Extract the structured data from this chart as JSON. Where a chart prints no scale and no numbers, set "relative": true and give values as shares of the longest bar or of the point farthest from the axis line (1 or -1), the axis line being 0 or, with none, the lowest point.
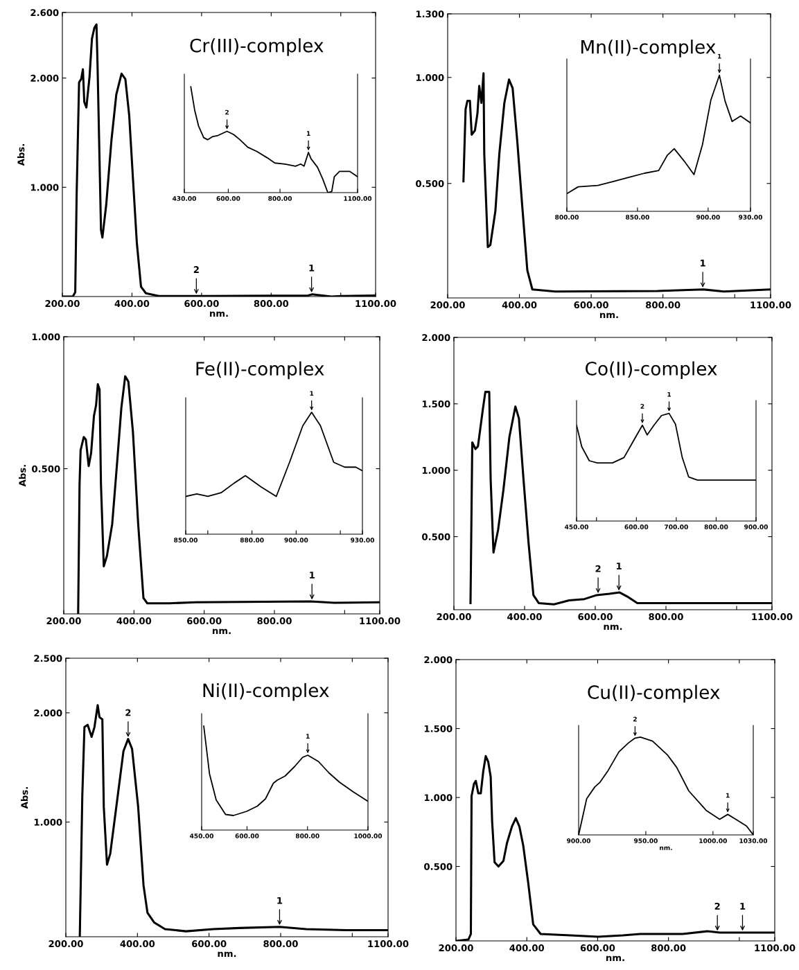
{
  "chart_data": [
    {
      "type": "line",
      "title": "Cr(III)-complex",
      "xlabel": "nm.",
      "ylabel": "Abs.",
      "color": "#000000",
      "x": [
        200,
        230,
        237,
        241,
        248,
        254,
        259,
        263,
        269,
        278,
        285,
        292,
        298,
        301,
        311,
        315,
        326,
        341,
        355,
        370,
        381,
        392,
        403,
        414,
        426,
        440,
        477,
        610,
        906,
        917,
        973,
        1003,
        1100
      ],
      "values": [
        0,
        0,
        0.04,
        0.93,
        1.96,
        1.99,
        2.08,
        1.78,
        1.73,
        2.01,
        2.36,
        2.46,
        2.49,
        2.13,
        0.61,
        0.54,
        0.84,
        1.43,
        1.85,
        2.04,
        1.99,
        1.66,
        1.07,
        0.49,
        0.09,
        0.03,
        0.005,
        0.005,
        0.01,
        0.02,
        0,
        0.005,
        0.01
      ],
      "xlim": [
        200,
        1100
      ],
      "ylim": [
        0,
        2.6
      ],
      "xticks": [
        {
          "value": 200,
          "label": "200.00"
        },
        {
          "value": 400,
          "label": "400.00"
        },
        {
          "value": 600,
          "label": "600.00"
        },
        {
          "value": 800,
          "label": "800.00"
        },
        {
          "value": 1000,
          "label": null
        },
        {
          "value": 1100,
          "label": "1100.00"
        }
      ],
      "yticks": [
        {
          "value": 1.0,
          "label": "1.000"
        },
        {
          "value": 2.0,
          "label": "2.000"
        },
        {
          "value": 2.6,
          "label": "2.600"
        }
      ],
      "annotations": [
        {
          "text": "2",
          "x": 585,
          "y": 0.005
        },
        {
          "text": "1",
          "x": 916,
          "y": 0.02
        }
      ]
    },
    {
      "type": "line",
      "relative": true,
      "color": "#000000",
      "x": [
        455,
        470,
        485,
        505,
        520,
        540,
        560,
        595,
        620,
        645,
        675,
        710,
        750,
        780,
        820,
        860,
        880,
        893,
        910,
        920,
        945,
        965,
        985,
        1000,
        1010,
        1030,
        1070,
        1100
      ],
      "values": [
        1.0,
        0.78,
        0.63,
        0.52,
        0.5,
        0.53,
        0.54,
        0.58,
        0.55,
        0.5,
        0.43,
        0.39,
        0.33,
        0.28,
        0.27,
        0.25,
        0.27,
        0.25,
        0.38,
        0.32,
        0.24,
        0.13,
        0.0,
        0.01,
        0.15,
        0.2,
        0.2,
        0.15
      ],
      "xlim": [
        430,
        1100
      ],
      "xticks": [
        {
          "value": 430,
          "label": "430.00"
        },
        {
          "value": 600,
          "label": "600.00"
        },
        {
          "value": 800,
          "label": "800.00"
        },
        {
          "value": 1100,
          "label": "1100.00"
        }
      ],
      "annotations": [
        {
          "text": "2",
          "x": 595,
          "y": 0.58
        },
        {
          "text": "1",
          "x": 910,
          "y": 0.38
        }
      ]
    },
    {
      "type": "line",
      "title": "Mn(II)-complex",
      "xlabel": "nm.",
      "color": "#000000",
      "x": [
        244,
        250,
        255,
        262,
        267,
        276,
        283,
        288,
        294,
        300,
        302,
        312,
        319,
        333,
        344,
        358,
        371,
        381,
        394,
        408,
        422,
        436,
        500,
        785,
        913,
        970,
        1100
      ],
      "values": [
        0.51,
        0.85,
        0.89,
        0.89,
        0.73,
        0.75,
        0.83,
        0.96,
        0.88,
        1.02,
        0.64,
        0.2,
        0.21,
        0.37,
        0.64,
        0.88,
        0.99,
        0.95,
        0.7,
        0.39,
        0.09,
        0,
        -0.01,
        -0.007,
        0,
        -0.01,
        0
      ],
      "xlim": [
        200,
        1100
      ],
      "ylim": [
        -0.04,
        1.3
      ],
      "xticks": [
        {
          "value": 200,
          "label": "200.00"
        },
        {
          "value": 400,
          "label": "400.00"
        },
        {
          "value": 600,
          "label": "600.00"
        },
        {
          "value": 800,
          "label": "800.00"
        },
        {
          "value": 1000,
          "label": null
        },
        {
          "value": 1100,
          "label": "1100.00"
        }
      ],
      "yticks": [
        {
          "value": 0.5,
          "label": "0.500"
        },
        {
          "value": 1.0,
          "label": "1.000"
        },
        {
          "value": 1.3,
          "label": "1.300"
        }
      ],
      "annotations": [
        {
          "text": "1",
          "x": 911,
          "y": 0
        }
      ]
    },
    {
      "type": "line",
      "relative": true,
      "color": "#000000",
      "x": [
        800,
        808,
        822,
        833,
        844,
        855,
        865,
        871,
        876,
        883,
        890,
        896,
        902,
        908,
        912,
        917,
        923,
        930
      ],
      "values": [
        0.13,
        0.18,
        0.19,
        0.22,
        0.25,
        0.28,
        0.3,
        0.41,
        0.46,
        0.37,
        0.27,
        0.49,
        0.82,
        1.0,
        0.81,
        0.66,
        0.7,
        0.65
      ],
      "xlim": [
        800,
        930
      ],
      "xticks": [
        {
          "value": 800,
          "label": "800.00"
        },
        {
          "value": 850,
          "label": "850.00"
        },
        {
          "value": 900,
          "label": "900.00"
        },
        {
          "value": 930,
          "label": "930.00"
        }
      ],
      "annotations": [
        {
          "text": "1",
          "x": 908,
          "y": 1.0
        }
      ]
    },
    {
      "type": "line",
      "title": "Fe(II)-complex",
      "xlabel": "nm.",
      "ylabel": "Abs.",
      "color": "#000000",
      "x": [
        241,
        245,
        248,
        257,
        263,
        271,
        278,
        286,
        292,
        297,
        302,
        306,
        314,
        323,
        338,
        353,
        364,
        375,
        384,
        397,
        412,
        427,
        438,
        501,
        576,
        903,
        970,
        1100
      ],
      "values": [
        -0.05,
        0.44,
        0.57,
        0.62,
        0.61,
        0.51,
        0.56,
        0.7,
        0.74,
        0.82,
        0.8,
        0.44,
        0.13,
        0.17,
        0.29,
        0.54,
        0.73,
        0.85,
        0.83,
        0.64,
        0.29,
        0.01,
        -0.01,
        -0.01,
        -0.006,
        -0.003,
        -0.008,
        -0.006
      ],
      "xlim": [
        200,
        1100
      ],
      "ylim": [
        -0.05,
        1.0
      ],
      "xticks": [
        {
          "value": 200,
          "label": "200.00"
        },
        {
          "value": 400,
          "label": "400.00"
        },
        {
          "value": 600,
          "label": "600.00"
        },
        {
          "value": 800,
          "label": "800.00"
        },
        {
          "value": 1000,
          "label": null
        },
        {
          "value": 1100,
          "label": "1100.00"
        }
      ],
      "yticks": [
        {
          "value": 0.5,
          "label": "0.500"
        },
        {
          "value": 1.0,
          "label": "1.000"
        }
      ],
      "annotations": [
        {
          "text": "1",
          "x": 907,
          "y": -0.003
        }
      ]
    },
    {
      "type": "line",
      "relative": true,
      "color": "#000000",
      "x": [
        850,
        855,
        860,
        866,
        872,
        877,
        884,
        891,
        897,
        903,
        907,
        911,
        917,
        922,
        927,
        930
      ],
      "values": [
        0.31,
        0.33,
        0.31,
        0.34,
        0.42,
        0.48,
        0.39,
        0.31,
        0.59,
        0.89,
        1.0,
        0.89,
        0.59,
        0.55,
        0.55,
        0.52
      ],
      "xlim": [
        850,
        930
      ],
      "xticks": [
        {
          "value": 850,
          "label": "850.00"
        },
        {
          "value": 860,
          "label": null
        },
        {
          "value": 880,
          "label": "880.00"
        },
        {
          "value": 900,
          "label": "900.00"
        },
        {
          "value": 920,
          "label": null
        },
        {
          "value": 930,
          "label": "930.00"
        }
      ],
      "annotations": [
        {
          "text": "1",
          "x": 907,
          "y": 1.0
        }
      ]
    },
    {
      "type": "line",
      "title": "Co(II)-complex",
      "xlabel": "nm.",
      "color": "#000000",
      "x": [
        247,
        252,
        261,
        268,
        282,
        289,
        300,
        304,
        312,
        325,
        340,
        357,
        374,
        384,
        397,
        411,
        425,
        440,
        483,
        526,
        569,
        604,
        640,
        669,
        690,
        719,
        769,
        1100
      ],
      "values": [
        0,
        1.21,
        1.16,
        1.18,
        1.46,
        1.59,
        1.59,
        0.93,
        0.38,
        0.55,
        0.85,
        1.25,
        1.48,
        1.39,
        0.93,
        0.46,
        0.06,
        0,
        -0.01,
        0.02,
        0.03,
        0.06,
        0.07,
        0.08,
        0.05,
        0,
        0,
        0
      ],
      "xlim": [
        200,
        1100
      ],
      "ylim": [
        -0.05,
        2.0
      ],
      "xticks": [
        {
          "value": 200,
          "label": "200.00"
        },
        {
          "value": 400,
          "label": "400.00"
        },
        {
          "value": 600,
          "label": "600.00"
        },
        {
          "value": 800,
          "label": "800.00"
        },
        {
          "value": 1000,
          "label": null
        },
        {
          "value": 1100,
          "label": "1100.00"
        }
      ],
      "yticks": [
        {
          "value": 0.5,
          "label": "0.500"
        },
        {
          "value": 1.0,
          "label": "1.000"
        },
        {
          "value": 1.5,
          "label": "1.500"
        },
        {
          "value": 2.0,
          "label": "2.000"
        }
      ],
      "annotations": [
        {
          "text": "2",
          "x": 608,
          "y": 0.06
        },
        {
          "text": "1",
          "x": 667,
          "y": 0.08
        }
      ]
    },
    {
      "type": "line",
      "relative": true,
      "color": "#000000",
      "x": [
        450,
        463,
        482,
        502,
        540,
        569,
        592,
        615,
        627,
        644,
        663,
        682,
        698,
        715,
        731,
        753,
        900
      ],
      "values": [
        0.89,
        0.69,
        0.56,
        0.54,
        0.54,
        0.59,
        0.74,
        0.89,
        0.8,
        0.89,
        0.98,
        1.0,
        0.9,
        0.59,
        0.41,
        0.38,
        0.38
      ],
      "xlim": [
        450,
        900
      ],
      "xticks": [
        {
          "value": 450,
          "label": "450.00"
        },
        {
          "value": 500,
          "label": null
        },
        {
          "value": 600,
          "label": "600.00"
        },
        {
          "value": 700,
          "label": "700.00"
        },
        {
          "value": 800,
          "label": "800.00"
        },
        {
          "value": 900,
          "label": "900.00"
        }
      ],
      "annotations": [
        {
          "text": "2",
          "x": 615,
          "y": 0.89
        },
        {
          "text": "1",
          "x": 682,
          "y": 1.0
        }
      ]
    },
    {
      "type": "line",
      "title": "Ni(II)-complex",
      "xlabel": "nm.",
      "ylabel": "Abs.",
      "color": "#000000",
      "x": [
        239,
        246,
        252,
        261,
        272,
        280,
        289,
        294,
        302,
        306,
        315,
        324,
        343,
        361,
        374,
        385,
        402,
        417,
        428,
        447,
        477,
        536,
        611,
        685,
        797,
        871,
        983,
        1100
      ],
      "values": [
        -0.05,
        1.24,
        1.87,
        1.89,
        1.78,
        1.87,
        2.07,
        1.96,
        1.94,
        1.14,
        0.61,
        0.71,
        1.19,
        1.65,
        1.76,
        1.67,
        1.14,
        0.42,
        0.17,
        0.08,
        0.02,
        0,
        0.02,
        0.03,
        0.04,
        0.02,
        0.01,
        0.01
      ],
      "xlim": [
        200,
        1100
      ],
      "ylim": [
        -0.05,
        2.5
      ],
      "xticks": [
        {
          "value": 200,
          "label": "200.00"
        },
        {
          "value": 400,
          "label": "400.00"
        },
        {
          "value": 600,
          "label": "600.00"
        },
        {
          "value": 800,
          "label": "800.00"
        },
        {
          "value": 1000,
          "label": null
        },
        {
          "value": 1100,
          "label": "1100.00"
        }
      ],
      "yticks": [
        {
          "value": 1.0,
          "label": "1.000"
        },
        {
          "value": 2.0,
          "label": "2.000"
        },
        {
          "value": 2.5,
          "label": "2.500"
        }
      ],
      "annotations": [
        {
          "text": "2",
          "x": 374,
          "y": 1.76
        },
        {
          "text": "1",
          "x": 797,
          "y": 0.04
        }
      ]
    },
    {
      "type": "line",
      "relative": true,
      "color": "#000000",
      "x": [
        457,
        476,
        498,
        529,
        555,
        599,
        634,
        661,
        687,
        700,
        726,
        757,
        784,
        801,
        836,
        871,
        906,
        950,
        998
      ],
      "values": [
        1.0,
        0.54,
        0.29,
        0.15,
        0.14,
        0.18,
        0.23,
        0.3,
        0.45,
        0.48,
        0.52,
        0.61,
        0.7,
        0.72,
        0.66,
        0.55,
        0.46,
        0.37,
        0.28
      ],
      "xlim": [
        450,
        1000
      ],
      "xticks": [
        {
          "value": 450,
          "label": "450.00"
        },
        {
          "value": 600,
          "label": "600.00"
        },
        {
          "value": 800,
          "label": "800.00"
        },
        {
          "value": 1000,
          "label": "1000.00"
        }
      ],
      "annotations": [
        {
          "text": "1",
          "x": 801,
          "y": 0.72
        }
      ]
    },
    {
      "type": "line",
      "title": "Cu(II)-complex",
      "xlabel": "nm.",
      "color": "#000000",
      "x": [
        200,
        235,
        242,
        244,
        251,
        256,
        263,
        270,
        277,
        284,
        291,
        298,
        302,
        309,
        320,
        334,
        344,
        358,
        369,
        379,
        390,
        404,
        418,
        439,
        523,
        601,
        671,
        720,
        840,
        910,
        945,
        1100
      ],
      "values": [
        -0.04,
        -0.03,
        0.01,
        1.01,
        1.1,
        1.12,
        1.03,
        1.03,
        1.19,
        1.3,
        1.26,
        1.15,
        0.83,
        0.53,
        0.5,
        0.54,
        0.67,
        0.79,
        0.85,
        0.79,
        0.65,
        0.38,
        0.08,
        0.01,
        0,
        -0.01,
        0,
        0.01,
        0.01,
        0.03,
        0.02,
        0.02
      ],
      "xlim": [
        200,
        1100
      ],
      "ylim": [
        -0.04,
        2.0
      ],
      "xticks": [
        {
          "value": 200,
          "label": "200.00"
        },
        {
          "value": 400,
          "label": "400.00"
        },
        {
          "value": 600,
          "label": "600.00"
        },
        {
          "value": 800,
          "label": "800.00"
        },
        {
          "value": 1000,
          "label": null
        },
        {
          "value": 1100,
          "label": "1100.00"
        }
      ],
      "yticks": [
        {
          "value": 0.5,
          "label": "0.500"
        },
        {
          "value": 1.0,
          "label": "1.000"
        },
        {
          "value": 1.5,
          "label": "1.500"
        },
        {
          "value": 2.0,
          "label": "2.000"
        }
      ],
      "annotations": [
        {
          "text": "2",
          "x": 938,
          "y": 0.02
        },
        {
          "text": "1",
          "x": 1009,
          "y": 0.02
        }
      ]
    },
    {
      "type": "line",
      "relative": true,
      "xlabel": "nm.",
      "color": "#000000",
      "x": [
        900,
        906,
        912,
        916,
        922,
        930,
        937,
        942,
        946,
        955,
        966,
        973,
        982,
        995,
        1005,
        1011,
        1017,
        1025,
        1030
      ],
      "values": [
        0,
        0.37,
        0.49,
        0.54,
        0.66,
        0.85,
        0.94,
        0.99,
        1.0,
        0.96,
        0.82,
        0.69,
        0.45,
        0.25,
        0.16,
        0.21,
        0.16,
        0.09,
        0
      ],
      "xlim": [
        900,
        1030
      ],
      "xticks": [
        {
          "value": 900,
          "label": "900.00"
        },
        {
          "value": 950,
          "label": "950.00"
        },
        {
          "value": 1000,
          "label": "1000.00"
        },
        {
          "value": 1030,
          "label": "1030.00"
        }
      ],
      "annotations": [
        {
          "text": "2",
          "x": 942,
          "y": 0.99
        },
        {
          "text": "1",
          "x": 1011,
          "y": 0.21
        }
      ]
    }
  ]
}
